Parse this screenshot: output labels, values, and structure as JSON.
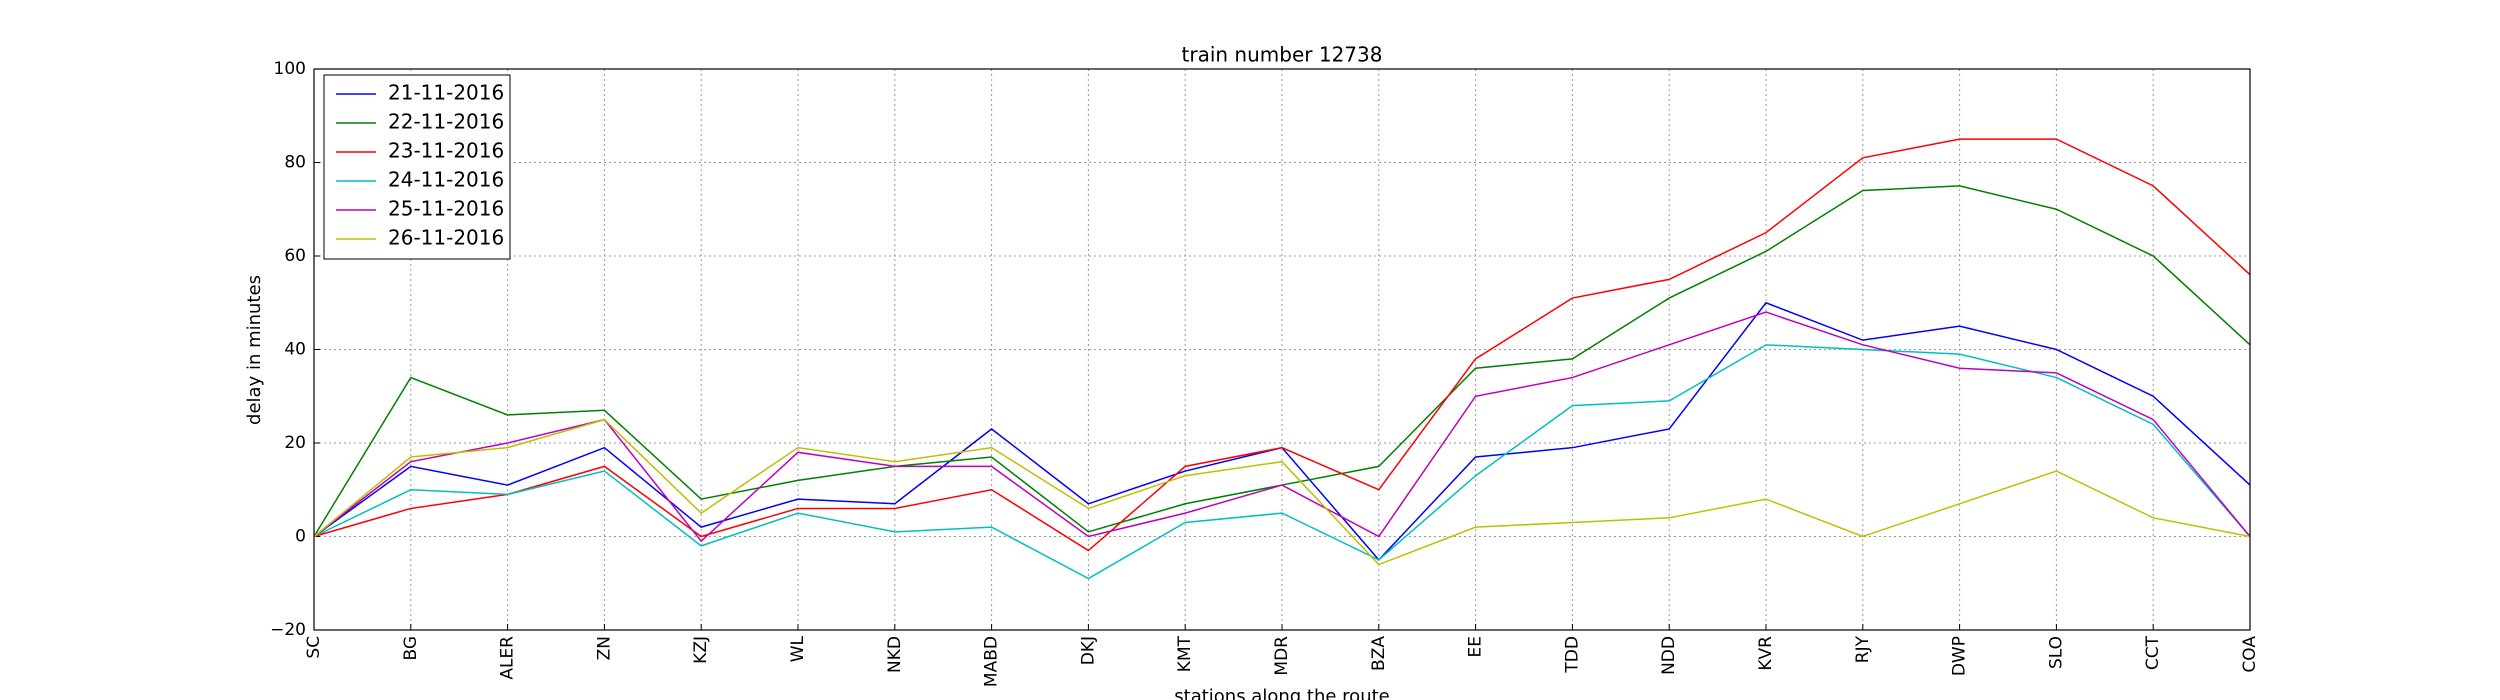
{
  "chart_data": {
    "type": "line",
    "title": "train number 12738",
    "xlabel": "stations along the route",
    "ylabel": "delay in minutes",
    "categories": [
      "SC",
      "BG",
      "ALER",
      "ZN",
      "KZJ",
      "WL",
      "NKD",
      "MABD",
      "DKJ",
      "KMT",
      "MDR",
      "BZA",
      "EE",
      "TDD",
      "NDD",
      "KVR",
      "RJY",
      "DWP",
      "SLO",
      "CCT",
      "COA"
    ],
    "series": [
      {
        "name": "21-11-2016",
        "color": "#0000ff",
        "values": [
          0,
          15,
          11,
          19,
          2,
          8,
          7,
          23,
          7,
          14,
          19,
          -5,
          17,
          19,
          23,
          50,
          42,
          45,
          40,
          30,
          11
        ]
      },
      {
        "name": "22-11-2016",
        "color": "#008000",
        "values": [
          0,
          34,
          26,
          27,
          8,
          12,
          15,
          17,
          1,
          7,
          11,
          15,
          36,
          38,
          51,
          61,
          74,
          75,
          70,
          60,
          41
        ]
      },
      {
        "name": "23-11-2016",
        "color": "#ff0000",
        "values": [
          0,
          6,
          9,
          15,
          0,
          6,
          6,
          10,
          -3,
          15,
          19,
          10,
          38,
          51,
          55,
          65,
          81,
          85,
          85,
          75,
          56
        ]
      },
      {
        "name": "24-11-2016",
        "color": "#00bfbf",
        "values": [
          0,
          10,
          9,
          14,
          -2,
          5,
          1,
          2,
          -9,
          3,
          5,
          -5,
          13,
          28,
          29,
          41,
          40,
          39,
          34,
          24,
          0
        ]
      },
      {
        "name": "25-11-2016",
        "color": "#bf00bf",
        "values": [
          0,
          16,
          20,
          25,
          -1,
          18,
          15,
          15,
          0,
          5,
          11,
          0,
          30,
          34,
          41,
          48,
          41,
          36,
          35,
          25,
          0
        ]
      },
      {
        "name": "26-11-2016",
        "color": "#bfbf00",
        "values": [
          0,
          17,
          19,
          25,
          5,
          19,
          16,
          19,
          6,
          13,
          16,
          -6,
          2,
          3,
          4,
          8,
          0,
          7,
          14,
          4,
          0
        ]
      }
    ],
    "ylim": [
      -20,
      100
    ],
    "yticks": [
      {
        "value": -20,
        "label": "−20"
      },
      0,
      20,
      40,
      60,
      80,
      100
    ],
    "grid": true,
    "legend": "upper left"
  }
}
